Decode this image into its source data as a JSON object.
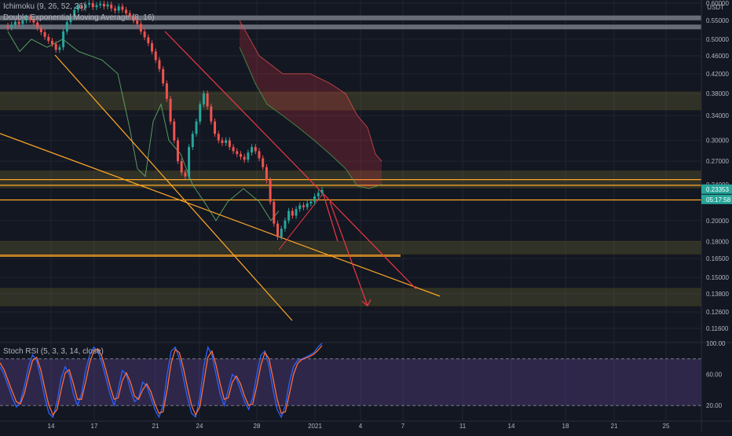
{
  "chart_data": [
    {
      "type": "candlestick",
      "indicators": {
        "ichimoku": "Ichimoku (9, 26, 52, 26)",
        "ema": "Double Exponential Moving Average (8, 16)"
      },
      "y_axis": {
        "unit": "USDT",
        "scale": "log",
        "ticks": [
          "0.60000",
          "0.55000",
          "0.50000",
          "0.46000",
          "0.42000",
          "0.38000",
          "0.34000",
          "0.30000",
          "0.27000",
          "0.24000",
          "0.20000",
          "0.18000",
          "0.16500",
          "0.15000",
          "0.13800",
          "0.12600",
          "0.11600"
        ],
        "price_labels": [
          "0.23353",
          "05:17:58"
        ]
      },
      "x_axis": {
        "ticks": [
          "14",
          "17",
          "21",
          "24",
          "28",
          "2021",
          "4",
          "7",
          "11",
          "14",
          "18",
          "21",
          "25"
        ]
      },
      "levels": {
        "upper_bars": [
          0.557,
          0.532
        ],
        "zones": [
          [
            0.35,
            0.383
          ],
          [
            0.236,
            0.257
          ],
          [
            0.169,
            0.18
          ],
          [
            0.13,
            0.142
          ]
        ],
        "lines": [
          0.246,
          0.239,
          0.222,
          0.168,
          0.167
        ]
      },
      "candles_close": [
        0.53,
        0.538,
        0.546,
        0.54,
        0.55,
        0.558,
        0.552,
        0.544,
        0.53,
        0.518,
        0.506,
        0.496,
        0.488,
        0.474,
        0.48,
        0.52,
        0.545,
        0.56,
        0.58,
        0.592,
        0.585,
        0.596,
        0.6,
        0.588,
        0.594,
        0.598,
        0.59,
        0.596,
        0.584,
        0.578,
        0.59,
        0.58,
        0.57,
        0.56,
        0.55,
        0.54,
        0.52,
        0.505,
        0.49,
        0.47,
        0.45,
        0.43,
        0.4,
        0.37,
        0.33,
        0.3,
        0.27,
        0.255,
        0.25,
        0.29,
        0.31,
        0.33,
        0.36,
        0.38,
        0.356,
        0.33,
        0.31,
        0.3,
        0.296,
        0.3,
        0.29,
        0.284,
        0.28,
        0.276,
        0.272,
        0.282,
        0.29,
        0.284,
        0.274,
        0.262,
        0.245,
        0.22,
        0.197,
        0.184,
        0.192,
        0.2,
        0.21,
        0.205,
        0.212,
        0.216,
        0.214,
        0.218,
        0.22,
        0.226,
        0.23,
        0.2335
      ],
      "projection": [
        [
          0.2335,
          0.18
        ],
        [
          0.18,
          0.13
        ]
      ]
    },
    {
      "type": "line",
      "name": "Stoch RSI (5, 3, 3, 14, close)",
      "ylim": [
        0,
        100
      ],
      "y_ticks": [
        "100.00",
        "60.00",
        "20.00"
      ],
      "bands": [
        80,
        20
      ],
      "series": [
        {
          "color": "#2962ff",
          "values": [
            70,
            60,
            45,
            30,
            18,
            25,
            45,
            70,
            85,
            78,
            55,
            30,
            10,
            5,
            25,
            55,
            70,
            60,
            35,
            20,
            35,
            65,
            85,
            95,
            90,
            75,
            55,
            35,
            20,
            40,
            65,
            60,
            40,
            25,
            30,
            50,
            45,
            30,
            15,
            5,
            20,
            60,
            90,
            95,
            80,
            55,
            30,
            10,
            5,
            30,
            70,
            95,
            85,
            60,
            35,
            20,
            40,
            60,
            55,
            40,
            25,
            15,
            30,
            60,
            85,
            90,
            70,
            40,
            15,
            5,
            20,
            50,
            70,
            78,
            80,
            82,
            85,
            88,
            95,
            100
          ]
        },
        {
          "color": "#ff6d3a",
          "values": [
            75,
            66,
            52,
            38,
            25,
            22,
            36,
            58,
            78,
            82,
            66,
            42,
            20,
            8,
            15,
            40,
            62,
            66,
            48,
            28,
            28,
            50,
            75,
            90,
            93,
            83,
            65,
            45,
            28,
            30,
            52,
            62,
            50,
            32,
            28,
            40,
            48,
            38,
            22,
            10,
            12,
            40,
            75,
            92,
            88,
            68,
            43,
            20,
            8,
            18,
            50,
            82,
            90,
            72,
            48,
            28,
            30,
            50,
            58,
            48,
            32,
            20,
            22,
            45,
            72,
            88,
            80,
            55,
            28,
            10,
            12,
            35,
            60,
            74,
            79,
            81,
            83,
            86,
            91,
            97
          ]
        }
      ]
    }
  ]
}
